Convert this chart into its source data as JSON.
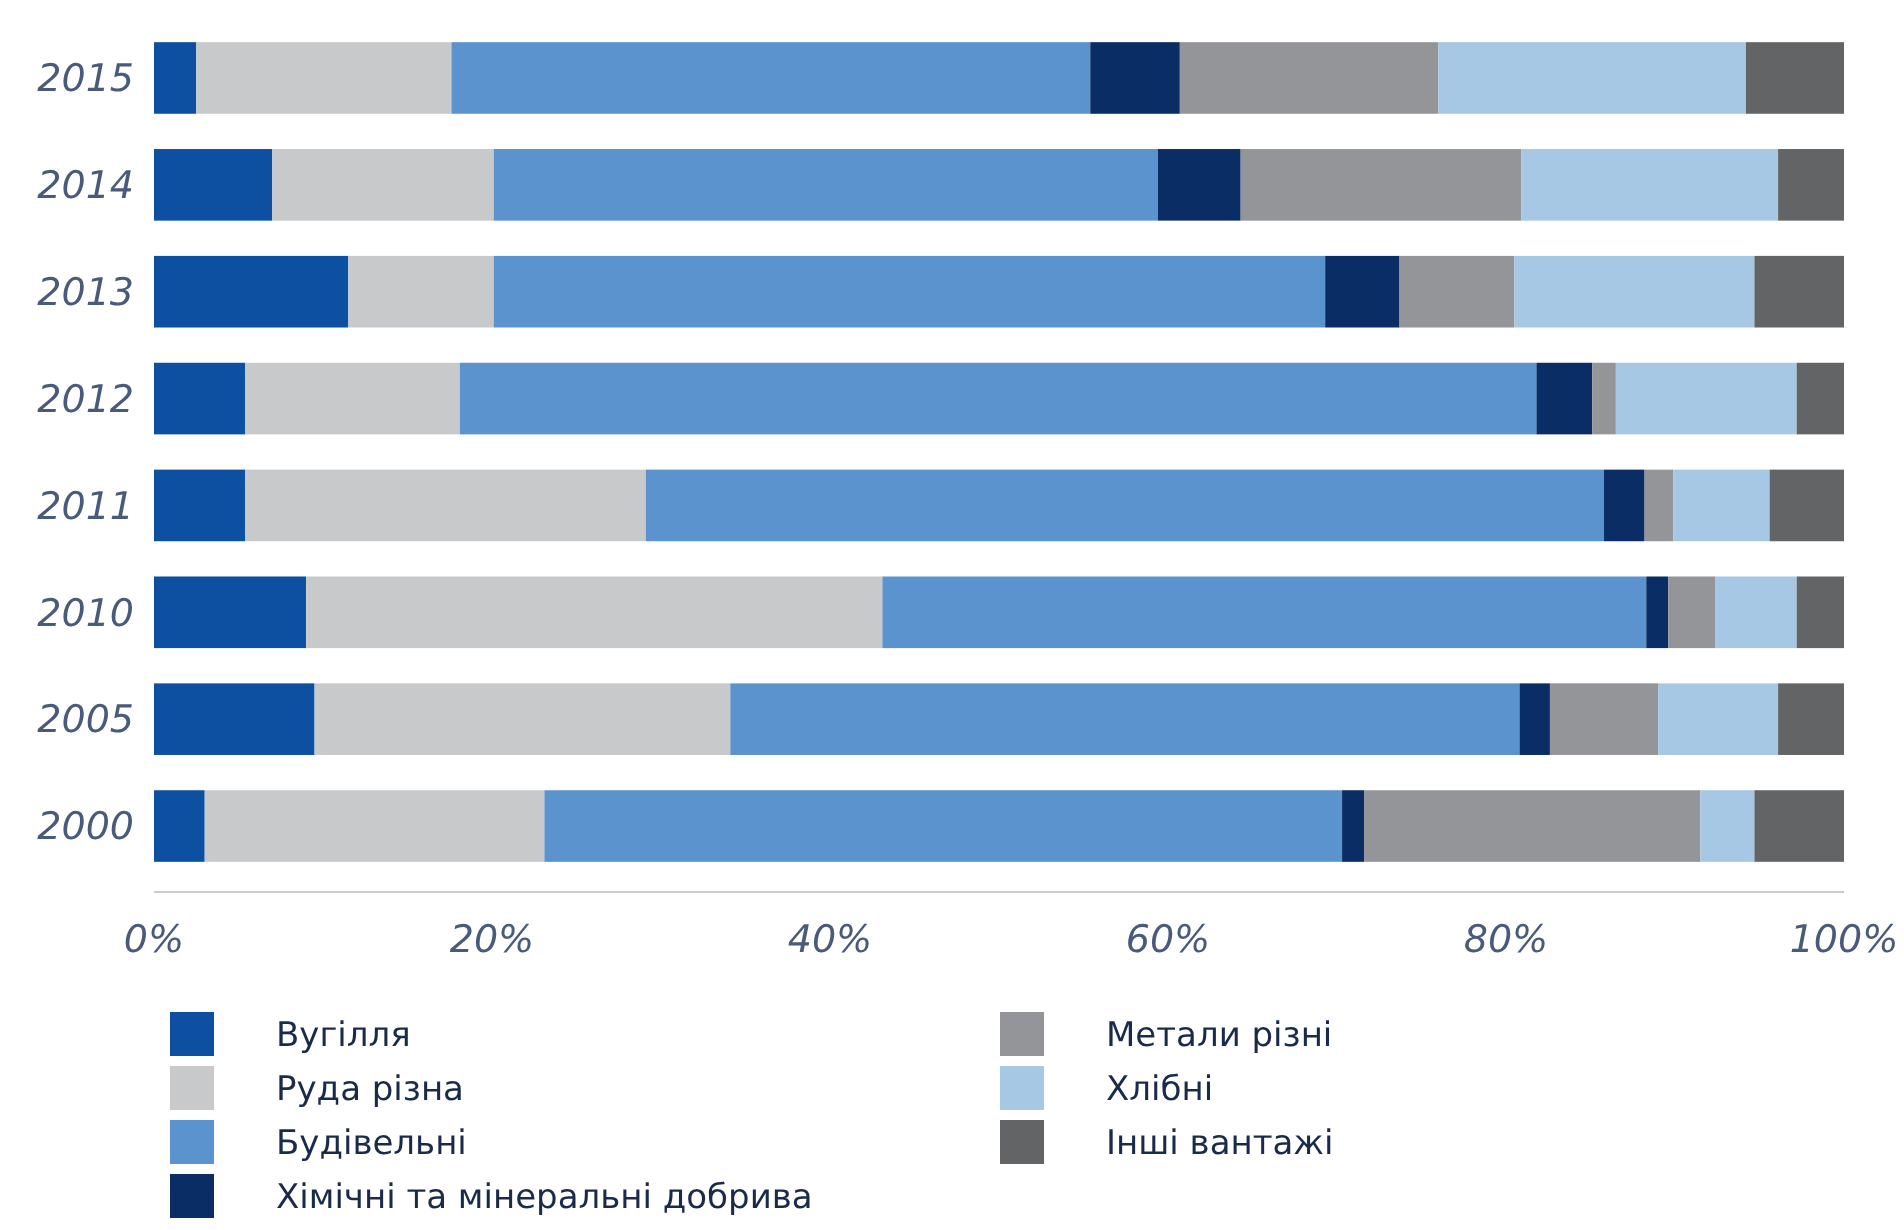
{
  "chart_data": {
    "type": "bar",
    "orientation": "horizontal",
    "stacked": true,
    "categories": [
      "2015",
      "2014",
      "2013",
      "2012",
      "2011",
      "2010",
      "2005",
      "2000"
    ],
    "series": [
      {
        "name": "Вугілля",
        "color": "#0d4fa0",
        "values": [
          2.5,
          7.0,
          11.5,
          5.4,
          5.4,
          9.0,
          9.5,
          3.0
        ]
      },
      {
        "name": "Руда різна",
        "color": "#c8c9cb",
        "values": [
          15.1,
          13.1,
          8.6,
          12.7,
          23.7,
          34.1,
          24.6,
          20.1
        ]
      },
      {
        "name": "Будівельні",
        "color": "#5b93cf",
        "values": [
          37.8,
          39.3,
          49.2,
          63.7,
          56.7,
          45.2,
          46.7,
          47.2
        ]
      },
      {
        "name": "Хімічні та мінеральні добрива",
        "color": "#0a2d66",
        "values": [
          5.3,
          4.9,
          4.4,
          3.3,
          2.4,
          1.3,
          1.8,
          1.3
        ]
      },
      {
        "name": "Метали різні",
        "color": "#939598",
        "values": [
          15.3,
          16.6,
          6.8,
          1.4,
          1.7,
          2.8,
          6.4,
          19.9
        ]
      },
      {
        "name": "Хлібні",
        "color": "#a6c8e4",
        "values": [
          18.2,
          15.2,
          14.2,
          10.7,
          5.7,
          4.8,
          7.1,
          3.2
        ]
      },
      {
        "name": "Інші вантажі",
        "color": "#636466",
        "values": [
          5.8,
          3.9,
          5.3,
          2.8,
          4.4,
          2.8,
          3.9,
          5.3
        ]
      }
    ],
    "xlim": [
      0,
      100
    ],
    "xticks": [
      {
        "value": 0,
        "label": "0%"
      },
      {
        "value": 20,
        "label": "20%"
      },
      {
        "value": 40,
        "label": "40%"
      },
      {
        "value": 60,
        "label": "60%"
      },
      {
        "value": 80,
        "label": "80%"
      },
      {
        "value": 100,
        "label": "100%"
      }
    ],
    "legend": "bottom"
  }
}
